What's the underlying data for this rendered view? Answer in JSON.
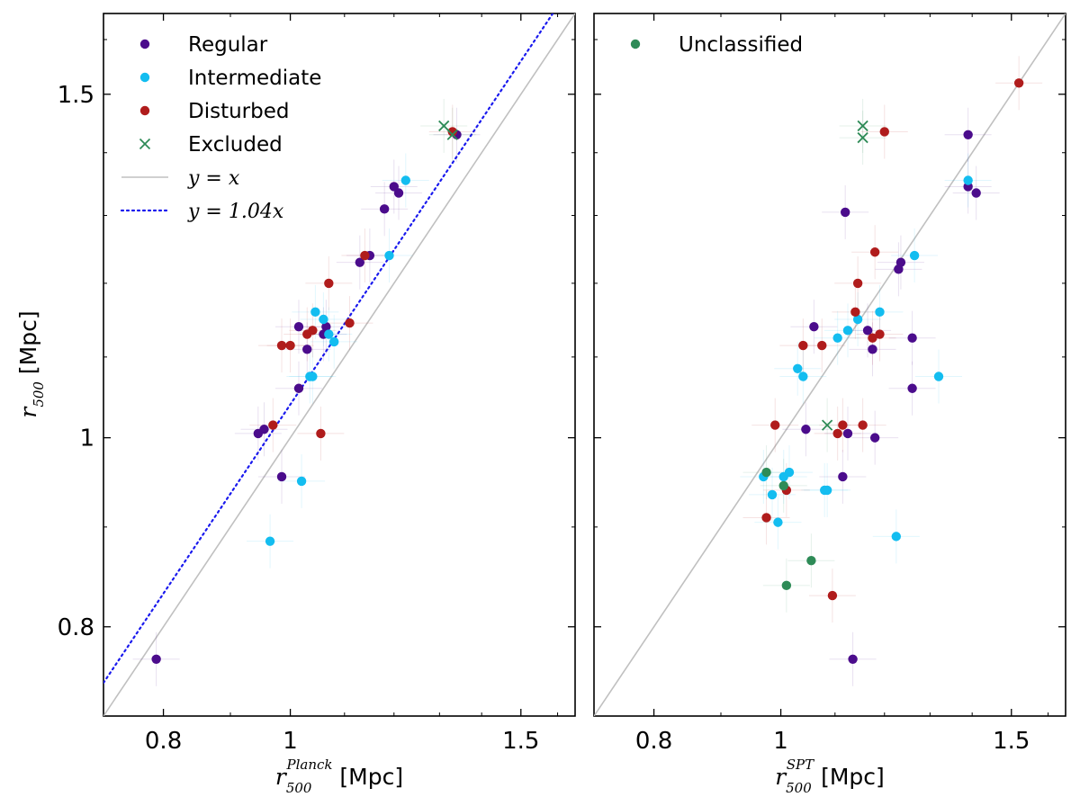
{
  "chart_data": [
    {
      "type": "scatter",
      "panel": "left",
      "scale": "log",
      "xlim": [
        0.72,
        1.65
      ],
      "ylim": [
        0.72,
        1.65
      ],
      "xticks": [
        {
          "value": 0.8,
          "label": "0.8"
        },
        {
          "value": 1.0,
          "label": "1"
        },
        {
          "value": 1.5,
          "label": "1.5"
        }
      ],
      "yticks": [
        {
          "value": 0.8,
          "label": "0.8"
        },
        {
          "value": 1.0,
          "label": "1"
        },
        {
          "value": 1.5,
          "label": "1.5"
        }
      ],
      "xlabel": {
        "sym": "r",
        "sub": "500",
        "sup": "Planck",
        "unit": " [Mpc]"
      },
      "ylabel": {
        "sym": "r",
        "sub": "500",
        "unit": " [Mpc]"
      },
      "legend": {
        "position": "top-left",
        "entries": [
          {
            "label": "Regular",
            "marker": "dot",
            "color": "#4b0c8c"
          },
          {
            "label": "Intermediate",
            "marker": "dot",
            "color": "#13bdf0"
          },
          {
            "label": "Disturbed",
            "marker": "dot",
            "color": "#b01c1c"
          },
          {
            "label": "Excluded",
            "marker": "x",
            "color": "#2e8b57"
          },
          {
            "label": "y = x",
            "marker": "solid-line",
            "color": "#c0c0c0"
          },
          {
            "label": "y = 1.04x",
            "marker": "dotted-line",
            "color": "#1a1aee"
          }
        ]
      },
      "lines": [
        {
          "name": "y=x",
          "slope": 1.0,
          "color": "#c0c0c0",
          "style": "solid"
        },
        {
          "name": "y=1.04x",
          "slope": 1.04,
          "color": "#1a1aee",
          "style": "dotted"
        }
      ],
      "series": [
        {
          "name": "Regular",
          "color": "#4b0c8c",
          "marker": "dot",
          "points": [
            [
              0.79,
              0.77
            ],
            [
              0.945,
              1.005
            ],
            [
              0.955,
              1.01
            ],
            [
              0.985,
              0.955
            ],
            [
              1.015,
              1.06
            ],
            [
              1.015,
              1.14
            ],
            [
              1.03,
              1.11
            ],
            [
              1.06,
              1.13
            ],
            [
              1.065,
              1.14
            ],
            [
              1.13,
              1.23
            ],
            [
              1.15,
              1.24
            ],
            [
              1.18,
              1.31
            ],
            [
              1.2,
              1.345
            ],
            [
              1.21,
              1.335
            ],
            [
              1.34,
              1.43
            ]
          ]
        },
        {
          "name": "Intermediate",
          "color": "#13bdf0",
          "marker": "dot",
          "points": [
            [
              0.965,
              0.885
            ],
            [
              1.02,
              0.95
            ],
            [
              1.035,
              1.075
            ],
            [
              1.04,
              1.075
            ],
            [
              1.045,
              1.16
            ],
            [
              1.06,
              1.15
            ],
            [
              1.07,
              1.13
            ],
            [
              1.08,
              1.12
            ],
            [
              1.19,
              1.24
            ],
            [
              1.225,
              1.355
            ]
          ]
        },
        {
          "name": "Disturbed",
          "color": "#b01c1c",
          "marker": "dot",
          "points": [
            [
              0.97,
              1.015
            ],
            [
              0.985,
              1.115
            ],
            [
              1.0,
              1.115
            ],
            [
              1.03,
              1.13
            ],
            [
              1.04,
              1.135
            ],
            [
              1.055,
              1.005
            ],
            [
              1.07,
              1.2
            ],
            [
              1.11,
              1.145
            ],
            [
              1.14,
              1.24
            ],
            [
              1.33,
              1.435
            ]
          ]
        },
        {
          "name": "Excluded",
          "color": "#2e8b57",
          "marker": "x",
          "points": [
            [
              1.31,
              1.445
            ],
            [
              1.33,
              1.43
            ]
          ]
        }
      ]
    },
    {
      "type": "scatter",
      "panel": "right",
      "scale": "log",
      "xlim": [
        0.72,
        1.65
      ],
      "ylim": [
        0.72,
        1.65
      ],
      "xticks": [
        {
          "value": 0.8,
          "label": "0.8"
        },
        {
          "value": 1.0,
          "label": "1"
        },
        {
          "value": 1.5,
          "label": "1.5"
        }
      ],
      "yticks": [],
      "xlabel": {
        "sym": "r",
        "sub": "500",
        "sup": "SPT",
        "unit": " [Mpc]"
      },
      "legend": {
        "position": "top-left",
        "entries": [
          {
            "label": "Unclassified",
            "marker": "dot",
            "color": "#2e8b57"
          }
        ]
      },
      "lines": [
        {
          "name": "y=x",
          "slope": 1.0,
          "color": "#c0c0c0",
          "style": "solid"
        }
      ],
      "series": [
        {
          "name": "Regular",
          "color": "#4b0c8c",
          "marker": "dot",
          "points": [
            [
              1.135,
              0.77
            ],
            [
              1.045,
              1.01
            ],
            [
              1.06,
              1.14
            ],
            [
              1.115,
              0.955
            ],
            [
              1.125,
              1.005
            ],
            [
              1.165,
              1.135
            ],
            [
              1.175,
              1.11
            ],
            [
              1.18,
              1.0
            ],
            [
              1.23,
              1.22
            ],
            [
              1.235,
              1.23
            ],
            [
              1.26,
              1.06
            ],
            [
              1.26,
              1.125
            ],
            [
              1.12,
              1.305
            ],
            [
              1.39,
              1.345
            ],
            [
              1.39,
              1.43
            ],
            [
              1.41,
              1.335
            ]
          ]
        },
        {
          "name": "Intermediate",
          "color": "#13bdf0",
          "marker": "dot",
          "points": [
            [
              0.97,
              0.955
            ],
            [
              0.985,
              0.935
            ],
            [
              0.995,
              0.905
            ],
            [
              1.005,
              0.955
            ],
            [
              1.015,
              0.96
            ],
            [
              1.03,
              1.085
            ],
            [
              1.04,
              1.075
            ],
            [
              1.08,
              0.94
            ],
            [
              1.085,
              0.94
            ],
            [
              1.105,
              1.125
            ],
            [
              1.125,
              1.135
            ],
            [
              1.145,
              1.15
            ],
            [
              1.19,
              1.16
            ],
            [
              1.225,
              0.89
            ],
            [
              1.265,
              1.24
            ],
            [
              1.32,
              1.075
            ],
            [
              1.39,
              1.355
            ]
          ]
        },
        {
          "name": "Disturbed",
          "color": "#b01c1c",
          "marker": "dot",
          "points": [
            [
              0.975,
              0.91
            ],
            [
              0.99,
              1.015
            ],
            [
              1.01,
              0.94
            ],
            [
              1.04,
              1.115
            ],
            [
              1.075,
              1.115
            ],
            [
              1.095,
              0.83
            ],
            [
              1.105,
              1.005
            ],
            [
              1.115,
              1.015
            ],
            [
              1.14,
              1.16
            ],
            [
              1.145,
              1.2
            ],
            [
              1.155,
              1.015
            ],
            [
              1.175,
              1.125
            ],
            [
              1.18,
              1.245
            ],
            [
              1.19,
              1.13
            ],
            [
              1.2,
              1.435
            ],
            [
              1.52,
              1.52
            ]
          ]
        },
        {
          "name": "Unclassified",
          "color": "#2e8b57",
          "marker": "dot",
          "points": [
            [
              0.975,
              0.96
            ],
            [
              1.005,
              0.945
            ],
            [
              1.01,
              0.84
            ],
            [
              1.055,
              0.865
            ]
          ]
        },
        {
          "name": "Excluded",
          "color": "#2e8b57",
          "marker": "x",
          "points": [
            [
              1.085,
              1.015
            ],
            [
              1.155,
              1.445
            ],
            [
              1.155,
              1.425
            ]
          ]
        }
      ]
    }
  ]
}
